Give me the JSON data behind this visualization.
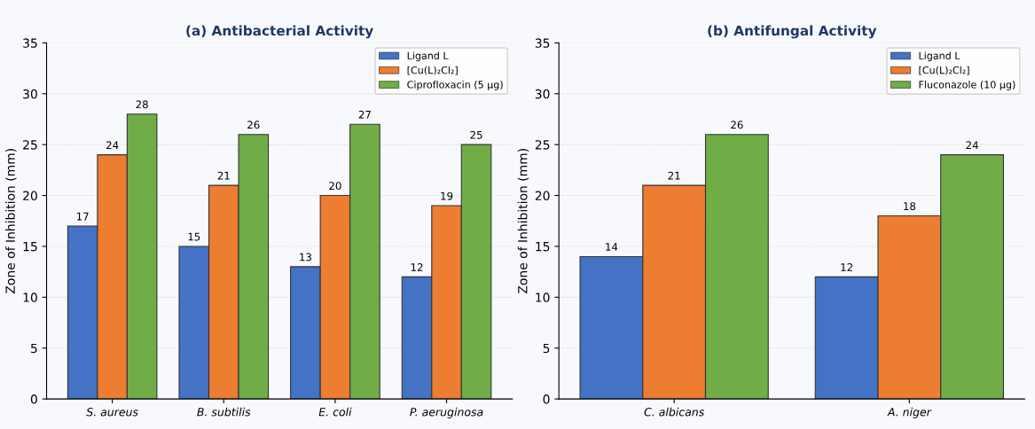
{
  "chart_data": [
    {
      "type": "bar",
      "title": "(a) Antibacterial Activity",
      "ylabel": "Zone of Inhibition (mm)",
      "categories": [
        "S. aureus",
        "B. subtilis",
        "E. coli",
        "P. aeruginosa"
      ],
      "series": [
        {
          "name": "Ligand L",
          "color": "#4472c4",
          "values": [
            17,
            15,
            13,
            12
          ]
        },
        {
          "name": "[Cu(L)₂Cl₂]",
          "color": "#ed7d31",
          "values": [
            24,
            21,
            20,
            19
          ]
        },
        {
          "name": "Ciprofloxacin (5 µg)",
          "color": "#70ad47",
          "values": [
            28,
            26,
            27,
            25
          ]
        }
      ],
      "ylim": [
        0,
        35
      ],
      "yticks": [
        0,
        5,
        10,
        15,
        20,
        25,
        30,
        35
      ],
      "grid": "y",
      "legend": "top right",
      "data_labels": true
    },
    {
      "type": "bar",
      "title": "(b) Antifungal Activity",
      "ylabel": "Zone of Inhibition (mm)",
      "categories": [
        "C. albicans",
        "A. niger"
      ],
      "series": [
        {
          "name": "Ligand L",
          "color": "#4472c4",
          "values": [
            14,
            12
          ]
        },
        {
          "name": "[Cu(L)₂Cl₂]",
          "color": "#ed7d31",
          "values": [
            21,
            18
          ]
        },
        {
          "name": "Fluconazole (10 µg)",
          "color": "#70ad47",
          "values": [
            26,
            24
          ]
        }
      ],
      "ylim": [
        0,
        35
      ],
      "yticks": [
        0,
        5,
        10,
        15,
        20,
        25,
        30,
        35
      ],
      "grid": "y",
      "legend": "top right",
      "data_labels": true
    }
  ]
}
